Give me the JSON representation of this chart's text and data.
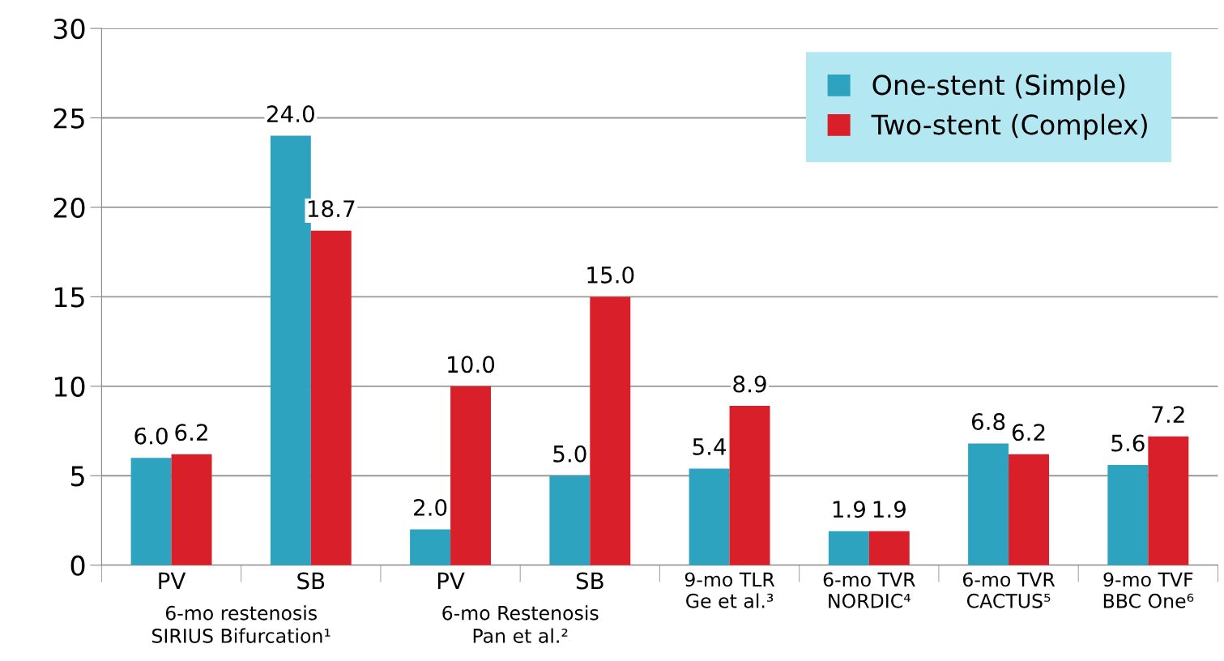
{
  "chart_data": {
    "type": "bar",
    "categories": [
      "PV",
      "SB",
      "PV",
      "SB",
      "9-mo TLR\nGe et al.³",
      "6-mo TVR\nNORDIC⁴",
      "6-mo TVR\nCACTUS⁵",
      "9-mo TVF\nBBC One⁶"
    ],
    "series": [
      {
        "name": "One-stent (Simple)",
        "color": "#2ea3c0",
        "values": [
          6.0,
          24.0,
          2.0,
          5.0,
          5.4,
          1.9,
          6.8,
          5.6
        ],
        "value_labels": [
          "6.0",
          "24.0",
          "2.0",
          "5.0",
          "5.4",
          "1.9",
          "6.8",
          "5.6"
        ]
      },
      {
        "name": "Two-stent (Complex)",
        "color": "#d9202a",
        "values": [
          6.2,
          18.7,
          10.0,
          15.0,
          8.9,
          1.9,
          6.2,
          7.2
        ],
        "value_labels": [
          "6.2",
          "18.7",
          "10.0",
          "15.0",
          "8.9",
          "1.9",
          "6.2",
          "7.2"
        ]
      }
    ],
    "annotations": [
      "6-mo restenosis\nSIRIUS Bifurcation¹",
      "6-mo Restenosis\nPan et al.²"
    ],
    "ylim": [
      0,
      30
    ],
    "yticks": [
      0,
      5,
      10,
      15,
      20,
      25,
      30
    ],
    "grid": "y",
    "legend": "top right"
  }
}
